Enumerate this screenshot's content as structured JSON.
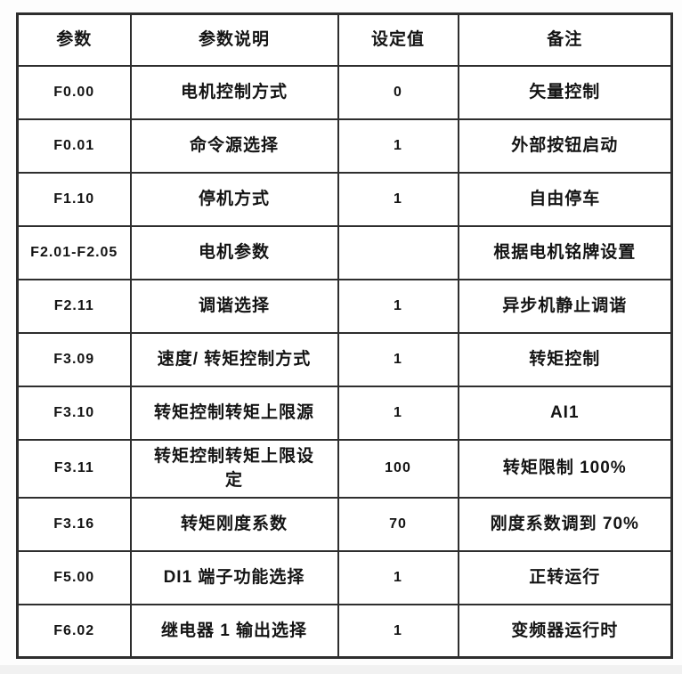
{
  "page": {
    "background_color": "#fdfdfd",
    "table_border_color": "#2e2e2e",
    "text_color": "#141414"
  },
  "table": {
    "columns": [
      {
        "label": "参数"
      },
      {
        "label": "参数说明"
      },
      {
        "label": "设定值"
      },
      {
        "label": "备注"
      }
    ],
    "rows": [
      {
        "param": "F0.00",
        "description": "电机控制方式",
        "value": "0",
        "note": "矢量控制"
      },
      {
        "param": "F0.01",
        "description": "命令源选择",
        "value": "1",
        "note": "外部按钮启动"
      },
      {
        "param": "F1.10",
        "description": "停机方式",
        "value": "1",
        "note": "自由停车"
      },
      {
        "param": "F2.01-F2.05",
        "description": "电机参数",
        "value": "",
        "note": "根据电机铭牌设置"
      },
      {
        "param": "F2.11",
        "description": "调谐选择",
        "value": "1",
        "note": "异步机静止调谐"
      },
      {
        "param": "F3.09",
        "description": "速度/ 转矩控制方式",
        "value": "1",
        "note": "转矩控制"
      },
      {
        "param": "F3.10",
        "description": "转矩控制转矩上限源",
        "value": "1",
        "note": "AI1"
      },
      {
        "param": "F3.11",
        "description": "转矩控制转矩上限设定",
        "value": "100",
        "note": "转矩限制 100%"
      },
      {
        "param": "F3.16",
        "description": "转矩刚度系数",
        "value": "70",
        "note": "刚度系数调到 70%"
      },
      {
        "param": "F5.00",
        "description": "DI1 端子功能选择",
        "value": "1",
        "note": "正转运行"
      },
      {
        "param": "F6.02",
        "description": "继电器 1 输出选择",
        "value": "1",
        "note": "变频器运行时"
      }
    ]
  }
}
